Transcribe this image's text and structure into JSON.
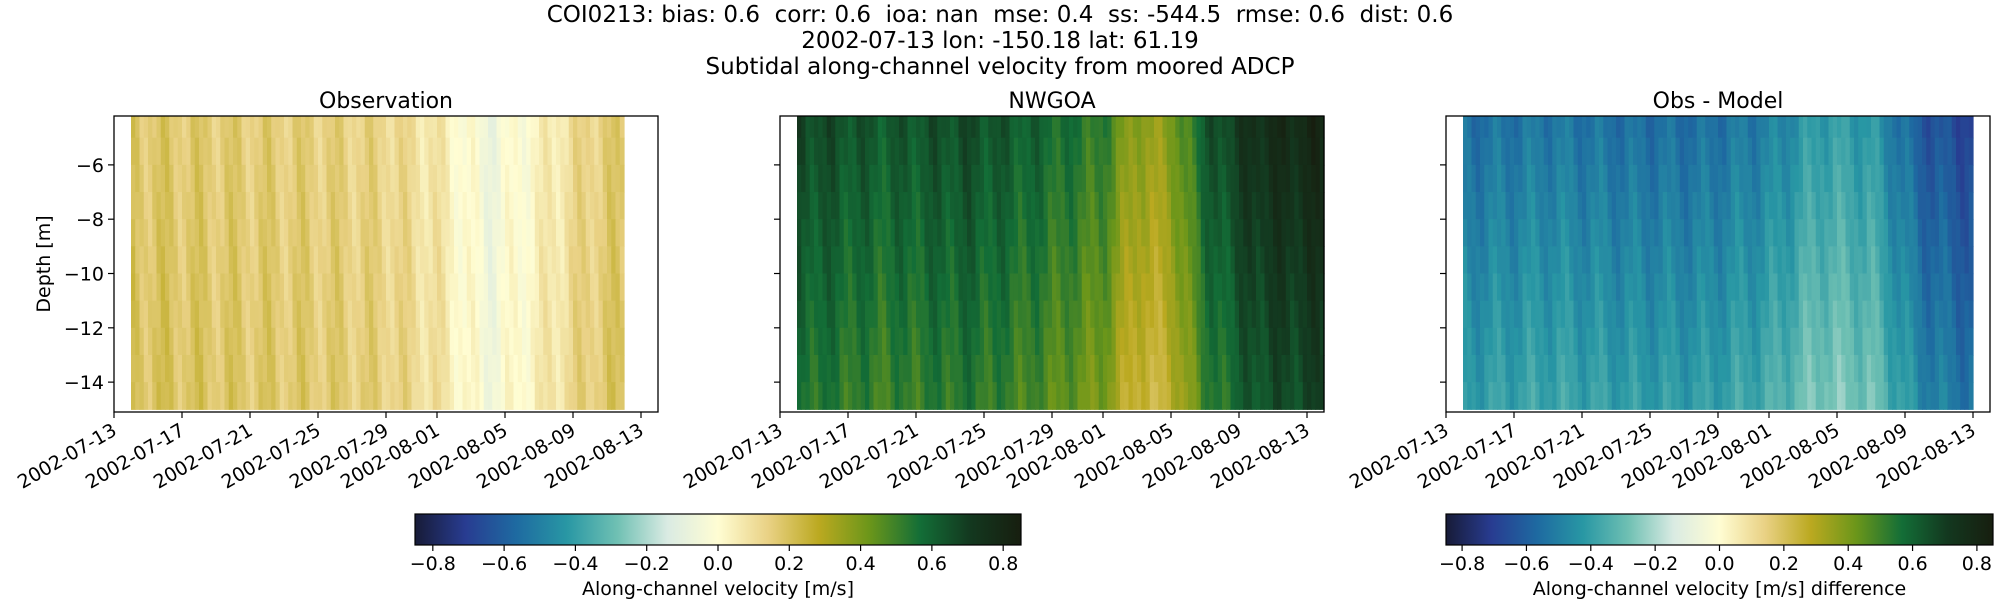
{
  "suptitle": {
    "line1": "COI0213: bias: 0.6  corr: 0.6  ioa: nan  mse: 0.4  ss: -544.5  rmse: 0.6  dist: 0.6",
    "line2": "2002-07-13 lon: -150.18 lat: 61.19",
    "line3": "Subtidal along-channel velocity from moored ADCP"
  },
  "colormap": {
    "name": "delta (diverging blue-yellow-green)",
    "stops": [
      "#171b37",
      "#283c91",
      "#1e6aa1",
      "#2897a4",
      "#6fc0b3",
      "#daebe3",
      "#fffdd3",
      "#e9d184",
      "#bba920",
      "#6b961a",
      "#136e37",
      "#13381f",
      "#171e0f"
    ]
  },
  "chart_data": [
    {
      "type": "heatmap",
      "title": "Observation",
      "xlabel": "",
      "ylabel": "Depth [m]",
      "x_range": [
        "2002-07-13",
        "2002-08-14"
      ],
      "x_ticks": [
        "2002-07-13",
        "2002-07-17",
        "2002-07-21",
        "2002-07-25",
        "2002-07-29",
        "2002-08-01",
        "2002-08-05",
        "2002-08-09",
        "2002-08-13"
      ],
      "y_range": [
        -15.1,
        -4.2
      ],
      "y_ticks": [
        -6,
        -8,
        -10,
        -12,
        -14
      ],
      "depths": [
        -4.5,
        -5.5,
        -6.5,
        -7.5,
        -8.5,
        -9.5,
        -10.5,
        -11.5,
        -12.5,
        -13.5,
        -14.5
      ],
      "data_start": "2002-07-14",
      "data_end": "2002-08-12",
      "profile": {
        "dates": [
          "2002-07-14",
          "2002-07-20",
          "2002-07-25",
          "2002-07-29",
          "2002-08-01",
          "2002-08-04",
          "2002-08-07",
          "2002-08-10",
          "2002-08-12"
        ],
        "values": [
          0.18,
          0.16,
          0.15,
          0.13,
          0.07,
          -0.06,
          0.03,
          0.14,
          0.17
        ]
      },
      "depth_change": 0.02,
      "colorbar": "shared-left"
    },
    {
      "type": "heatmap",
      "title": "NWGOA",
      "xlabel": "",
      "ylabel": "",
      "x_range": [
        "2002-07-13",
        "2002-08-14"
      ],
      "x_ticks": [
        "2002-07-13",
        "2002-07-17",
        "2002-07-21",
        "2002-07-25",
        "2002-07-29",
        "2002-08-01",
        "2002-08-05",
        "2002-08-09",
        "2002-08-13"
      ],
      "y_range": [
        -15.1,
        -4.2
      ],
      "y_ticks": [
        -6,
        -8,
        -10,
        -12,
        -14
      ],
      "depths": [
        -4.5,
        -5.5,
        -6.5,
        -7.5,
        -8.5,
        -9.5,
        -10.5,
        -11.5,
        -12.5,
        -13.5,
        -14.5
      ],
      "data_start": "2002-07-14",
      "data_end": "2002-08-14",
      "profile": {
        "dates": [
          "2002-07-14",
          "2002-07-19",
          "2002-07-24",
          "2002-07-28",
          "2002-08-01",
          "2002-08-03",
          "2002-08-05",
          "2002-08-07",
          "2002-08-10",
          "2002-08-14"
        ],
        "values": [
          0.68,
          0.62,
          0.66,
          0.6,
          0.52,
          0.35,
          0.38,
          0.62,
          0.76,
          0.8
        ]
      },
      "depth_change": -0.12,
      "colorbar": "shared-left"
    },
    {
      "type": "heatmap",
      "title": "Obs - Model",
      "xlabel": "",
      "ylabel": "",
      "x_range": [
        "2002-07-13",
        "2002-08-14"
      ],
      "x_ticks": [
        "2002-07-13",
        "2002-07-17",
        "2002-07-21",
        "2002-07-25",
        "2002-07-29",
        "2002-08-01",
        "2002-08-05",
        "2002-08-09",
        "2002-08-13"
      ],
      "y_range": [
        -15.1,
        -4.2
      ],
      "y_ticks": [
        -6,
        -8,
        -10,
        -12,
        -14
      ],
      "depths": [
        -4.5,
        -5.5,
        -6.5,
        -7.5,
        -8.5,
        -9.5,
        -10.5,
        -11.5,
        -12.5,
        -13.5,
        -14.5
      ],
      "data_start": "2002-07-14",
      "data_end": "2002-08-13",
      "profile": {
        "dates": [
          "2002-07-14",
          "2002-07-19",
          "2002-07-24",
          "2002-07-28",
          "2002-08-01",
          "2002-08-04",
          "2002-08-07",
          "2002-08-10",
          "2002-08-13"
        ],
        "values": [
          -0.55,
          -0.52,
          -0.55,
          -0.55,
          -0.5,
          -0.4,
          -0.42,
          -0.62,
          -0.68
        ]
      },
      "depth_change": 0.14,
      "colorbar": "right"
    }
  ],
  "colorbars": [
    {
      "label": "Along-channel velocity [m/s]",
      "ticks": [
        "−0.8",
        "−0.6",
        "−0.4",
        "−0.2",
        "0.0",
        "0.2",
        "0.4",
        "0.6",
        "0.8"
      ],
      "tick_values": [
        -0.8,
        -0.6,
        -0.4,
        -0.2,
        0,
        0.2,
        0.4,
        0.6,
        0.8
      ],
      "range": [
        -0.85,
        0.85
      ]
    },
    {
      "label": "Along-channel velocity [m/s] difference",
      "ticks": [
        "−0.8",
        "−0.6",
        "−0.4",
        "−0.2",
        "0.0",
        "0.2",
        "0.4",
        "0.6",
        "0.8"
      ],
      "tick_values": [
        -0.8,
        -0.6,
        -0.4,
        -0.2,
        0,
        0.2,
        0.4,
        0.6,
        0.8
      ],
      "range": [
        -0.85,
        0.85
      ]
    }
  ]
}
